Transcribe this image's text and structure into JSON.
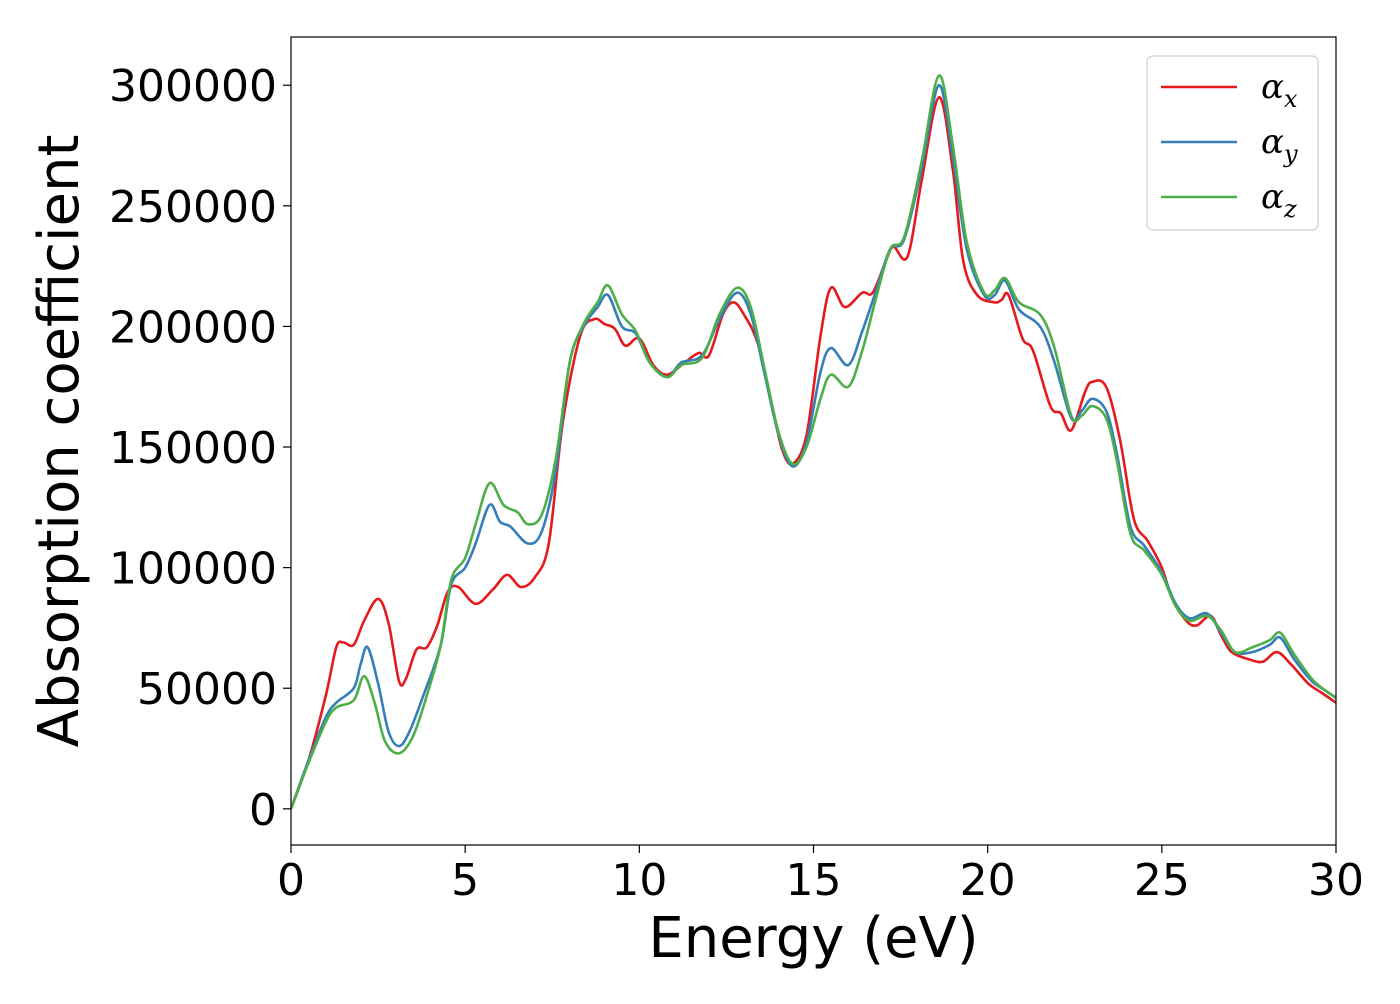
{
  "chart_data": {
    "type": "line",
    "title": "",
    "xlabel": "Energy (eV)",
    "ylabel": "Absorption coefficient",
    "xlim": [
      0,
      30
    ],
    "ylim": [
      -15000,
      320000
    ],
    "xticks": [
      0,
      5,
      10,
      15,
      20,
      25,
      30
    ],
    "yticks": [
      0,
      50000,
      100000,
      150000,
      200000,
      250000,
      300000
    ],
    "grid": false,
    "legend_position": "top-right",
    "series": [
      {
        "name": "α_x",
        "name_base": "α",
        "name_sub": "x",
        "color": "#e41a1c",
        "points": [
          [
            0,
            0
          ],
          [
            0.5,
            20000
          ],
          [
            1,
            47000
          ],
          [
            1.3,
            67000
          ],
          [
            1.5,
            69000
          ],
          [
            1.8,
            68000
          ],
          [
            2.1,
            78000
          ],
          [
            2.5,
            87000
          ],
          [
            2.8,
            77000
          ],
          [
            3.1,
            53000
          ],
          [
            3.3,
            54000
          ],
          [
            3.6,
            66000
          ],
          [
            3.9,
            67000
          ],
          [
            4.2,
            76000
          ],
          [
            4.5,
            90000
          ],
          [
            4.8,
            92000
          ],
          [
            5.3,
            85000
          ],
          [
            5.8,
            91000
          ],
          [
            6.2,
            97000
          ],
          [
            6.6,
            92000
          ],
          [
            7.0,
            96000
          ],
          [
            7.4,
            110000
          ],
          [
            7.8,
            160000
          ],
          [
            8.3,
            196000
          ],
          [
            8.7,
            203000
          ],
          [
            9.0,
            201000
          ],
          [
            9.3,
            199000
          ],
          [
            9.6,
            192000
          ],
          [
            10.0,
            195000
          ],
          [
            10.4,
            184000
          ],
          [
            10.8,
            180000
          ],
          [
            11.3,
            185000
          ],
          [
            11.7,
            189000
          ],
          [
            12.0,
            188000
          ],
          [
            12.4,
            205000
          ],
          [
            12.7,
            210000
          ],
          [
            13.0,
            205000
          ],
          [
            13.4,
            193000
          ],
          [
            13.8,
            168000
          ],
          [
            14.1,
            149000
          ],
          [
            14.4,
            143000
          ],
          [
            14.8,
            155000
          ],
          [
            15.2,
            196000
          ],
          [
            15.5,
            216000
          ],
          [
            15.9,
            208000
          ],
          [
            16.4,
            214000
          ],
          [
            16.7,
            214000
          ],
          [
            17.1,
            228000
          ],
          [
            17.3,
            233000
          ],
          [
            17.7,
            229000
          ],
          [
            18.1,
            260000
          ],
          [
            18.6,
            295000
          ],
          [
            19.0,
            265000
          ],
          [
            19.3,
            227000
          ],
          [
            19.7,
            213000
          ],
          [
            20.2,
            210000
          ],
          [
            20.4,
            211000
          ],
          [
            20.6,
            213000
          ],
          [
            21.0,
            195000
          ],
          [
            21.3,
            190000
          ],
          [
            21.8,
            167000
          ],
          [
            22.1,
            164000
          ],
          [
            22.4,
            157000
          ],
          [
            22.8,
            173000
          ],
          [
            23.0,
            177000
          ],
          [
            23.4,
            175000
          ],
          [
            23.8,
            153000
          ],
          [
            24.2,
            120000
          ],
          [
            24.6,
            111000
          ],
          [
            25.0,
            100000
          ],
          [
            25.3,
            87000
          ],
          [
            25.7,
            78000
          ],
          [
            26.0,
            76000
          ],
          [
            26.4,
            80000
          ],
          [
            26.7,
            72000
          ],
          [
            27.0,
            65000
          ],
          [
            27.5,
            62000
          ],
          [
            27.9,
            61000
          ],
          [
            28.3,
            65000
          ],
          [
            28.7,
            60000
          ],
          [
            29.2,
            52000
          ],
          [
            29.6,
            48000
          ],
          [
            30,
            44000
          ]
        ]
      },
      {
        "name": "α_y",
        "name_base": "α",
        "name_sub": "y",
        "color": "#377eb8",
        "points": [
          [
            0,
            0
          ],
          [
            0.5,
            20000
          ],
          [
            1,
            38000
          ],
          [
            1.3,
            44000
          ],
          [
            1.8,
            50000
          ],
          [
            2.0,
            60000
          ],
          [
            2.2,
            67000
          ],
          [
            2.5,
            52000
          ],
          [
            2.8,
            32000
          ],
          [
            3.1,
            26000
          ],
          [
            3.4,
            32000
          ],
          [
            3.8,
            47000
          ],
          [
            4.3,
            68000
          ],
          [
            4.6,
            93000
          ],
          [
            5.0,
            100000
          ],
          [
            5.3,
            110000
          ],
          [
            5.7,
            126000
          ],
          [
            6.0,
            119000
          ],
          [
            6.3,
            117000
          ],
          [
            6.8,
            110000
          ],
          [
            7.2,
            115000
          ],
          [
            7.6,
            140000
          ],
          [
            8.0,
            185000
          ],
          [
            8.4,
            200000
          ],
          [
            8.8,
            208000
          ],
          [
            9.1,
            213000
          ],
          [
            9.5,
            200000
          ],
          [
            9.9,
            197000
          ],
          [
            10.3,
            185000
          ],
          [
            10.8,
            179000
          ],
          [
            11.2,
            185000
          ],
          [
            11.8,
            188000
          ],
          [
            12.3,
            203000
          ],
          [
            12.8,
            214000
          ],
          [
            13.2,
            205000
          ],
          [
            13.6,
            180000
          ],
          [
            14.0,
            155000
          ],
          [
            14.4,
            142000
          ],
          [
            14.8,
            152000
          ],
          [
            15.2,
            181000
          ],
          [
            15.5,
            191000
          ],
          [
            16.0,
            184000
          ],
          [
            16.4,
            198000
          ],
          [
            16.8,
            215000
          ],
          [
            17.2,
            232000
          ],
          [
            17.6,
            236000
          ],
          [
            18.1,
            265000
          ],
          [
            18.6,
            300000
          ],
          [
            19.0,
            270000
          ],
          [
            19.4,
            232000
          ],
          [
            19.9,
            213000
          ],
          [
            20.2,
            213000
          ],
          [
            20.5,
            219000
          ],
          [
            20.9,
            207000
          ],
          [
            21.5,
            200000
          ],
          [
            21.9,
            186000
          ],
          [
            22.4,
            162000
          ],
          [
            22.7,
            165000
          ],
          [
            23.0,
            170000
          ],
          [
            23.4,
            165000
          ],
          [
            23.7,
            148000
          ],
          [
            24.1,
            117000
          ],
          [
            24.5,
            109000
          ],
          [
            25.0,
            98000
          ],
          [
            25.4,
            85000
          ],
          [
            25.8,
            79000
          ],
          [
            26.3,
            81000
          ],
          [
            26.7,
            73000
          ],
          [
            27.1,
            65000
          ],
          [
            27.6,
            65000
          ],
          [
            28.1,
            68000
          ],
          [
            28.4,
            71000
          ],
          [
            28.8,
            62000
          ],
          [
            29.3,
            53000
          ],
          [
            29.7,
            49000
          ],
          [
            30,
            46000
          ]
        ]
      },
      {
        "name": "α_z",
        "name_base": "α",
        "name_sub": "z",
        "color": "#4daf4a",
        "points": [
          [
            0,
            0
          ],
          [
            0.5,
            19000
          ],
          [
            1,
            36000
          ],
          [
            1.3,
            42000
          ],
          [
            1.8,
            45000
          ],
          [
            2.1,
            55000
          ],
          [
            2.4,
            44000
          ],
          [
            2.7,
            28000
          ],
          [
            3.1,
            23000
          ],
          [
            3.5,
            30000
          ],
          [
            3.9,
            47000
          ],
          [
            4.3,
            68000
          ],
          [
            4.6,
            95000
          ],
          [
            5.0,
            104000
          ],
          [
            5.3,
            118000
          ],
          [
            5.7,
            135000
          ],
          [
            6.1,
            126000
          ],
          [
            6.5,
            123000
          ],
          [
            6.8,
            118000
          ],
          [
            7.2,
            122000
          ],
          [
            7.6,
            145000
          ],
          [
            8.0,
            185000
          ],
          [
            8.4,
            201000
          ],
          [
            8.8,
            210000
          ],
          [
            9.1,
            217000
          ],
          [
            9.5,
            205000
          ],
          [
            9.9,
            198000
          ],
          [
            10.3,
            185000
          ],
          [
            10.8,
            179000
          ],
          [
            11.2,
            184000
          ],
          [
            11.8,
            187000
          ],
          [
            12.3,
            205000
          ],
          [
            12.8,
            216000
          ],
          [
            13.2,
            208000
          ],
          [
            13.6,
            182000
          ],
          [
            14.0,
            156000
          ],
          [
            14.4,
            143000
          ],
          [
            14.8,
            150000
          ],
          [
            15.2,
            170000
          ],
          [
            15.5,
            180000
          ],
          [
            16.0,
            175000
          ],
          [
            16.4,
            190000
          ],
          [
            16.8,
            212000
          ],
          [
            17.2,
            232000
          ],
          [
            17.6,
            237000
          ],
          [
            18.1,
            268000
          ],
          [
            18.6,
            304000
          ],
          [
            19.0,
            275000
          ],
          [
            19.4,
            235000
          ],
          [
            19.9,
            214000
          ],
          [
            20.2,
            215000
          ],
          [
            20.5,
            220000
          ],
          [
            20.9,
            210000
          ],
          [
            21.5,
            205000
          ],
          [
            21.9,
            192000
          ],
          [
            22.4,
            163000
          ],
          [
            22.7,
            163000
          ],
          [
            23.0,
            167000
          ],
          [
            23.4,
            162000
          ],
          [
            23.7,
            145000
          ],
          [
            24.1,
            114000
          ],
          [
            24.5,
            107000
          ],
          [
            25.0,
            97000
          ],
          [
            25.4,
            84000
          ],
          [
            25.8,
            78000
          ],
          [
            26.3,
            80000
          ],
          [
            26.7,
            74000
          ],
          [
            27.1,
            65000
          ],
          [
            27.6,
            67000
          ],
          [
            28.1,
            70000
          ],
          [
            28.4,
            73000
          ],
          [
            28.8,
            64000
          ],
          [
            29.3,
            54000
          ],
          [
            29.7,
            49000
          ],
          [
            30,
            46000
          ]
        ]
      }
    ]
  }
}
